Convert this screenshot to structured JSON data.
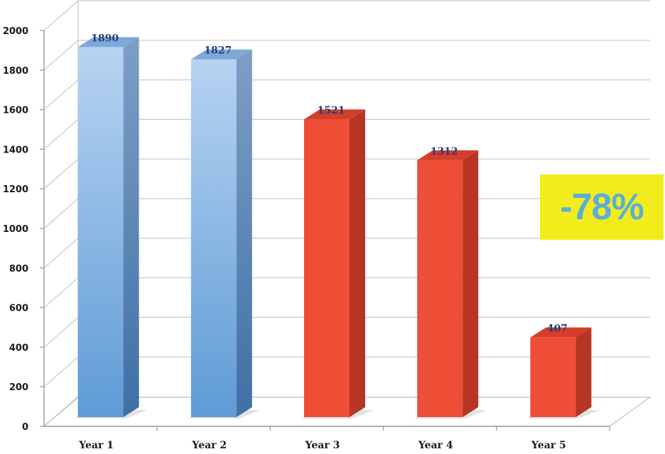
{
  "chart_data": {
    "type": "bar",
    "title": "",
    "xlabel": "",
    "ylabel": "",
    "categories": [
      "Year 1",
      "Year 2",
      "Year 3",
      "Year 4",
      "Year 5"
    ],
    "values": [
      1890,
      1827,
      1521,
      1312,
      407
    ],
    "data_labels": [
      "1890",
      "1827",
      "1521",
      "1312",
      "407"
    ],
    "bar_colors": [
      "#8fb9e6",
      "#8fb9e6",
      "#ee4d36",
      "#ee4d36",
      "#ee4d36"
    ],
    "ylim": [
      0,
      2000
    ],
    "yticks": [
      0,
      200,
      400,
      600,
      800,
      1000,
      1200,
      1400,
      1600,
      1800,
      2000
    ],
    "grid": true,
    "style": "3d-columns",
    "annotation": {
      "text": "-78%",
      "background": "#f2ec1d",
      "color": "#5aaed8"
    }
  }
}
